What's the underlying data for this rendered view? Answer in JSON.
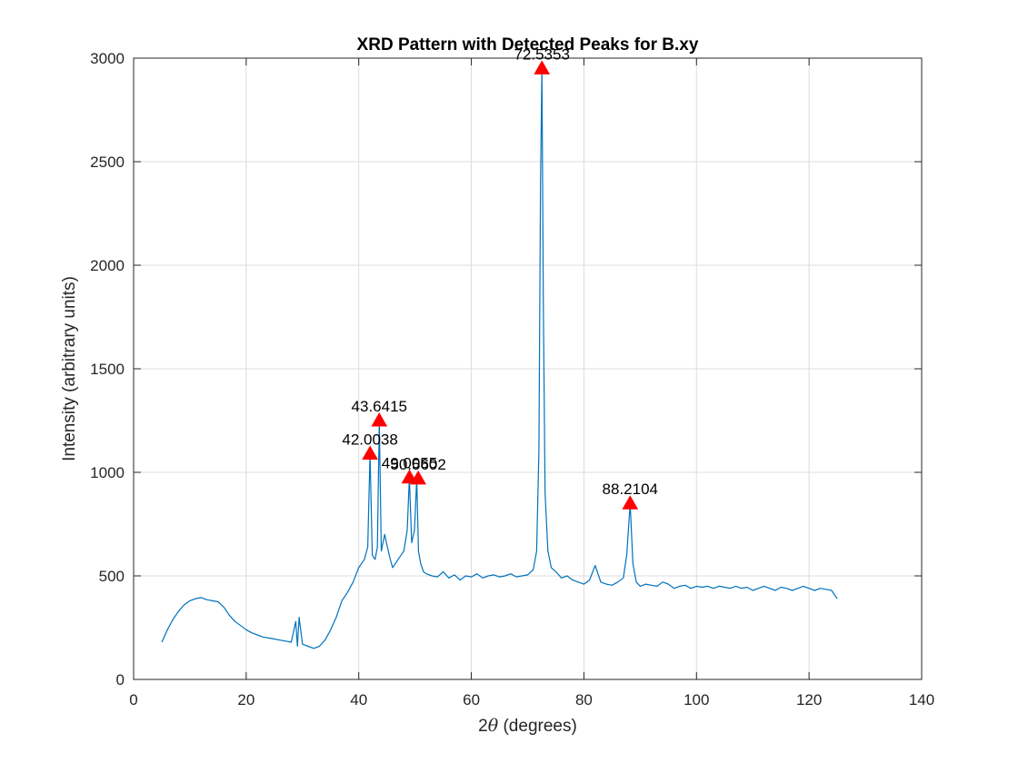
{
  "chart_data": {
    "type": "line",
    "title": "XRD Pattern with Detected Peaks for B.xy",
    "xlabel_prefix": "2",
    "xlabel_theta": "θ",
    "xlabel_suffix": " (degrees)",
    "ylabel": "Intensity (arbitrary units)",
    "xlim": [
      0,
      140
    ],
    "ylim": [
      0,
      3000
    ],
    "xticks": [
      0,
      20,
      40,
      60,
      80,
      100,
      120,
      140
    ],
    "yticks": [
      0,
      500,
      1000,
      1500,
      2000,
      2500,
      3000
    ],
    "grid": true,
    "colors": {
      "line": "#0072BD",
      "marker": "#FF0000",
      "grid": "#dcdcdc",
      "axis": "#262626"
    },
    "series": [
      {
        "x": [
          5,
          6,
          7,
          8,
          9,
          10,
          11,
          12,
          13,
          14,
          15,
          16,
          17,
          18,
          19,
          20,
          21,
          22,
          23,
          24,
          25,
          26,
          27,
          28,
          28.8,
          29.1,
          29.4,
          30,
          31,
          32,
          33,
          34,
          35,
          36,
          37,
          38,
          39,
          40,
          41,
          41.6,
          42.0,
          42.4,
          42.9,
          43.3,
          43.64,
          44.0,
          44.6,
          45.0,
          45.5,
          46,
          47,
          48,
          48.6,
          49.0,
          49.4,
          49.9,
          50.3,
          50.6,
          51.0,
          51.5,
          52,
          53,
          54,
          55,
          56,
          57,
          58,
          59,
          60,
          61,
          62,
          63,
          64,
          65,
          66,
          67,
          68,
          69,
          70,
          71,
          71.6,
          72.0,
          72.3,
          72.54,
          72.8,
          73.1,
          73.6,
          74.2,
          75,
          76,
          77,
          78,
          79,
          80,
          81,
          82,
          83,
          84,
          85,
          86,
          87,
          87.6,
          88.21,
          88.7,
          89.3,
          90,
          91,
          92,
          93,
          94,
          95,
          96,
          97,
          98,
          99,
          100,
          101,
          102,
          103,
          104,
          105,
          106,
          107,
          108,
          109,
          110,
          111,
          112,
          113,
          114,
          115,
          116,
          117,
          118,
          119,
          120,
          121,
          122,
          123,
          124,
          125
        ],
        "y": [
          180,
          240,
          290,
          330,
          360,
          380,
          390,
          395,
          385,
          380,
          375,
          350,
          310,
          280,
          260,
          240,
          225,
          215,
          205,
          200,
          195,
          190,
          185,
          180,
          280,
          160,
          300,
          170,
          160,
          150,
          160,
          190,
          240,
          300,
          380,
          420,
          470,
          540,
          580,
          640,
          1090,
          600,
          580,
          640,
          1250,
          620,
          700,
          650,
          590,
          540,
          580,
          620,
          720,
          975,
          660,
          720,
          970,
          620,
          560,
          520,
          510,
          500,
          495,
          520,
          490,
          505,
          480,
          500,
          495,
          510,
          490,
          500,
          505,
          495,
          500,
          510,
          495,
          500,
          505,
          530,
          620,
          1100,
          2400,
          2950,
          1800,
          900,
          620,
          540,
          520,
          490,
          500,
          480,
          470,
          460,
          480,
          550,
          470,
          460,
          455,
          470,
          490,
          600,
          850,
          560,
          470,
          450,
          460,
          455,
          450,
          470,
          460,
          440,
          450,
          455,
          440,
          450,
          445,
          450,
          440,
          450,
          445,
          440,
          450,
          440,
          445,
          430,
          440,
          450,
          440,
          430,
          445,
          440,
          430,
          440,
          450,
          440,
          430,
          440,
          435,
          430,
          390
        ]
      }
    ],
    "peaks": [
      {
        "x": 42.0038,
        "y": 1090,
        "label": "42.0038"
      },
      {
        "x": 43.6415,
        "y": 1250,
        "label": "43.6415"
      },
      {
        "x": 49.0055,
        "y": 975,
        "label": "49.0055"
      },
      {
        "x": 50.5602,
        "y": 970,
        "label": "50.5602"
      },
      {
        "x": 72.5353,
        "y": 2950,
        "label": "72.5353"
      },
      {
        "x": 88.2104,
        "y": 850,
        "label": "88.2104"
      }
    ]
  }
}
